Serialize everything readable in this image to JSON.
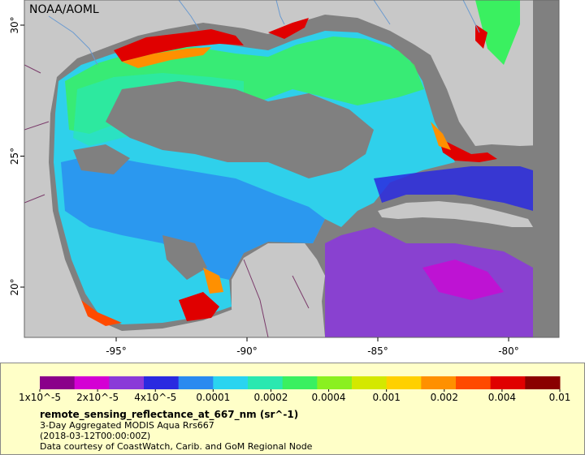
{
  "map": {
    "credit_label": "NOAA/AOML",
    "lon_ticks": [
      {
        "lon": -95,
        "label": "-95°"
      },
      {
        "lon": -90,
        "label": "-90°"
      },
      {
        "lon": -85,
        "label": "-85°"
      },
      {
        "lon": -80,
        "label": "-80°"
      }
    ],
    "lat_ticks": [
      {
        "lat": 30,
        "label": "30°"
      },
      {
        "lat": 25,
        "label": "25°"
      },
      {
        "lat": 20,
        "label": "20°"
      }
    ],
    "colors": {
      "land": "#c8c8c8",
      "no_data": "#808080",
      "rivers": "#6a9ad0",
      "borders": "#7a3a6a"
    }
  },
  "legend": {
    "colors": [
      "#8a008a",
      "#d400d4",
      "#8a3ad8",
      "#2a2ae0",
      "#2a8af0",
      "#2ad4f0",
      "#2ae8b0",
      "#3af060",
      "#8af020",
      "#d4e800",
      "#ffd000",
      "#ff9000",
      "#ff4a00",
      "#e00000",
      "#8a0000"
    ],
    "tick_labels": [
      "1x10^-5",
      "2x10^-5",
      "4x10^-5",
      "0.0001",
      "0.0002",
      "0.0004",
      "0.001",
      "0.002",
      "0.004",
      "0.01"
    ],
    "title": "remote_sensing_reflectance_at_667_nm (sr^-1)",
    "lines": [
      "3-Day Aggregated MODIS Aqua Rrs667",
      "(2018-03-12T00:00:00Z)",
      "Data courtesy of CoastWatch, Carib. and GoM Regional Node"
    ]
  }
}
